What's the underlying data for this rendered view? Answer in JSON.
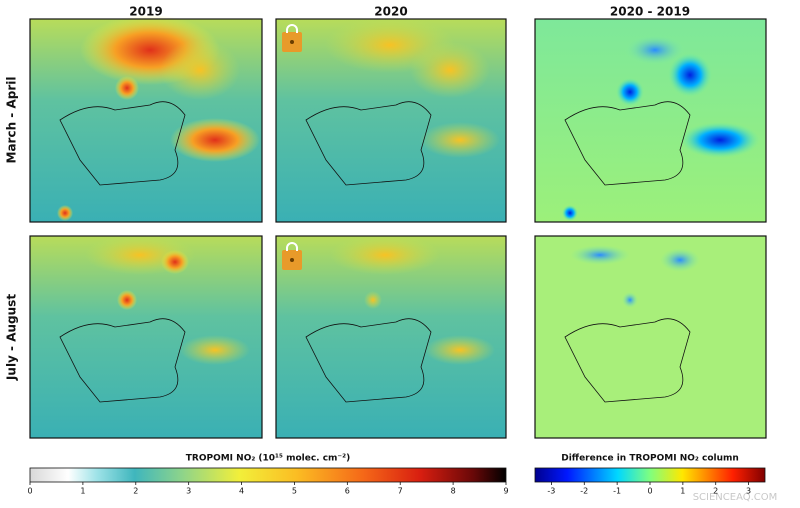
{
  "columns": [
    "2019",
    "2020",
    "2020 - 2019"
  ],
  "rows": [
    "March - April",
    "July - August"
  ],
  "colorbars": [
    {
      "title": "TROPOMI NO₂ (10¹⁵ molec. cm⁻²)",
      "range": [
        0,
        9
      ],
      "ticks": [
        0,
        1,
        2,
        3,
        4,
        5,
        6,
        7,
        8,
        9
      ]
    },
    {
      "title": "Difference in TROPOMI NO₂ column",
      "range": [
        -3.5,
        3.5
      ],
      "ticks": [
        -3,
        -2,
        -1,
        0,
        1,
        2,
        3
      ]
    }
  ],
  "watermark": "SCIENCEAQ.COM"
}
